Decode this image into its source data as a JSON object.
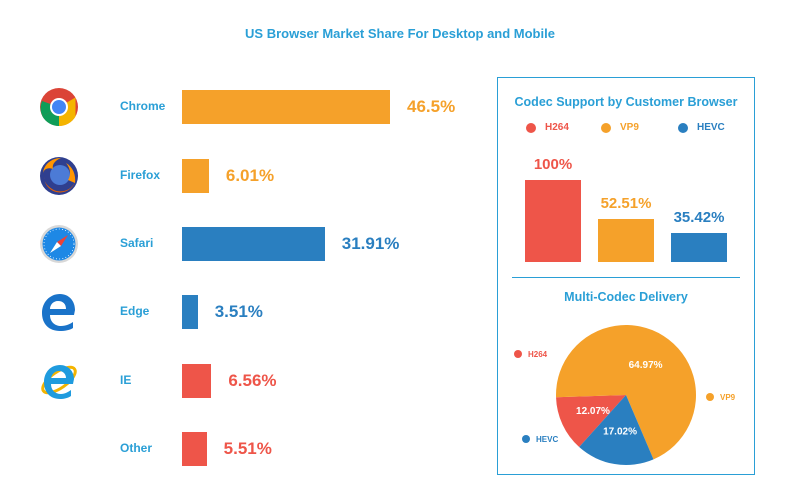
{
  "title": "US Browser Market Share For Desktop and Mobile",
  "colors": {
    "accent": "#2a9fd6",
    "orange": "#f5a12a",
    "blue": "#2a7fc0",
    "red": "#ee5549"
  },
  "chart_data": [
    {
      "type": "bar",
      "orientation": "horizontal",
      "title": "US Browser Market Share For Desktop and Mobile",
      "categories": [
        "Chrome",
        "Firefox",
        "Safari",
        "Edge",
        "IE",
        "Other"
      ],
      "values": [
        46.5,
        6.01,
        31.91,
        3.51,
        6.56,
        5.51
      ],
      "value_labels": [
        "46.5%",
        "6.01%",
        "31.91%",
        "3.51%",
        "6.56%",
        "5.51%"
      ],
      "bar_colors": [
        "#f5a12a",
        "#f5a12a",
        "#2a7fc0",
        "#2a7fc0",
        "#ee5549",
        "#ee5549"
      ],
      "icons": [
        "chrome-icon",
        "firefox-icon",
        "safari-icon",
        "edge-icon",
        "ie-icon",
        ""
      ],
      "grid": false
    },
    {
      "type": "bar",
      "title": "Codec Support by Customer Browser",
      "categories": [
        "H264",
        "VP9",
        "HEVC"
      ],
      "values": [
        100,
        52.51,
        35.42
      ],
      "value_labels": [
        "100%",
        "52.51%",
        "35.42%"
      ],
      "colors": [
        "#ee5549",
        "#f5a12a",
        "#2a7fc0"
      ],
      "legend": "top",
      "ylim": [
        0,
        100
      ],
      "grid": false
    },
    {
      "type": "pie",
      "title": "Multi-Codec Delivery",
      "labels": [
        "H264",
        "VP9",
        "HEVC"
      ],
      "values": [
        12.07,
        64.97,
        17.02
      ],
      "value_labels": [
        "12.07%",
        "64.97%",
        "17.02%"
      ],
      "colors": [
        "#ee5549",
        "#f5a12a",
        "#2a7fc0"
      ]
    }
  ]
}
